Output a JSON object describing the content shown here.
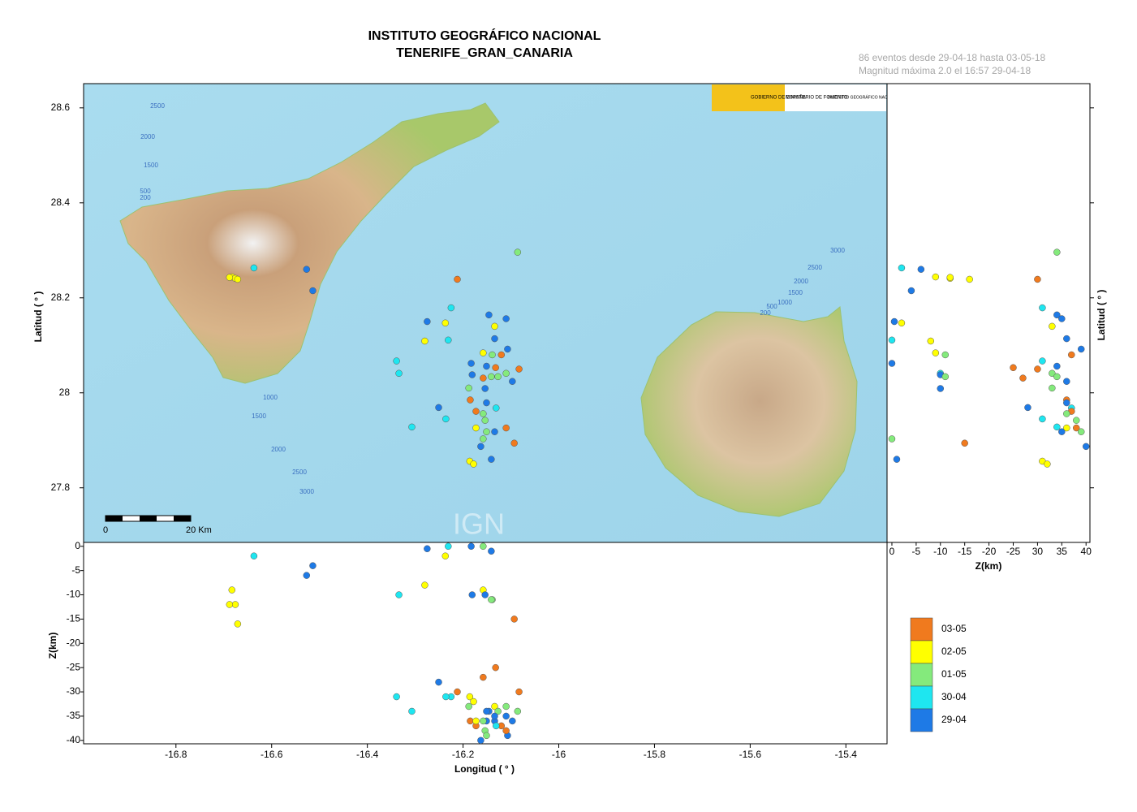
{
  "header": {
    "title": "INSTITUTO GEOGRÁFICO NACIONAL",
    "subtitle": "TENERIFE_GRAN_CANARIA",
    "info": [
      "86 eventos desde 29-04-18 hasta 03-05-18",
      "Magnitud máxima 2.0 el 16:57 29-04-18"
    ]
  },
  "map": {
    "xlabel": "Longitud ( ° )",
    "ylabel": "Latitud ( ° )",
    "xlim": [
      -16.993,
      -15.314
    ],
    "ylim": [
      27.685,
      28.651
    ],
    "xticks": [
      -16.8,
      -16.6,
      -16.4,
      -16.2,
      -16.0,
      -15.8,
      -15.6,
      -15.4
    ],
    "yticks": [
      28.6,
      28.4,
      28.2,
      28,
      27.8
    ],
    "scale_bar": {
      "start": "0",
      "end": "20 Km"
    },
    "watermark": "IGN",
    "logos": [
      "GOBIERNO DE ESPAÑA",
      "MINISTERIO DE FOMENTO",
      "INSTITUTO GEOGRÁFICO NACIONAL"
    ],
    "bathymetry_labels": [
      "2500",
      "2000",
      "1500",
      "500",
      "200",
      "1000",
      "1500",
      "2000",
      "2500",
      "3000",
      "3000",
      "2500",
      "2000",
      "1500",
      "1000",
      "500",
      "200"
    ]
  },
  "depth_section": {
    "ylabel": "Z(km)",
    "ylim": [
      -0.8,
      40.7
    ],
    "yticks": [
      0,
      {
        "value": 5,
        "label": "-5"
      },
      {
        "value": 10,
        "label": "-10"
      },
      {
        "value": 15,
        "label": "-15"
      },
      {
        "value": 20,
        "label": "-20"
      },
      {
        "value": 25,
        "label": "-25"
      },
      {
        "value": 30,
        "label": "-30"
      },
      {
        "value": 35,
        "label": "-35"
      },
      {
        "value": 40,
        "label": "-40"
      }
    ]
  },
  "depth_profile": {
    "xlabel": "Z(km)",
    "ylabel": "Latitud ( ° )",
    "xlim": [
      -1,
      40.8
    ],
    "xticks": [
      0,
      {
        "value": 5,
        "label": "-5"
      },
      {
        "value": 10,
        "label": "-10"
      },
      {
        "value": 15,
        "label": "-15"
      },
      {
        "value": 20,
        "label": "-20"
      },
      {
        "value": 25,
        "label": "-25"
      },
      30,
      35,
      40
    ]
  },
  "legend": [
    {
      "label": "03-05",
      "color": "#f07a1e"
    },
    {
      "label": "02-05",
      "color": "#ffff00"
    },
    {
      "label": "01-05",
      "color": "#84ea7c"
    },
    {
      "label": "30-04",
      "color": "#1ee6f0"
    },
    {
      "label": "29-04",
      "color": "#1e7ae6"
    }
  ],
  "events": [
    {
      "lon": -16.637,
      "lat": 28.263,
      "depth": 2,
      "date": "30-04"
    },
    {
      "lon": -16.527,
      "lat": 28.26,
      "depth": 6,
      "date": "29-04"
    },
    {
      "lon": -16.514,
      "lat": 28.215,
      "depth": 4,
      "date": "29-04"
    },
    {
      "lon": -16.683,
      "lat": 28.244,
      "depth": 9,
      "date": "02-05"
    },
    {
      "lon": -16.676,
      "lat": 28.241,
      "depth": 12,
      "date": "02-05"
    },
    {
      "lon": -16.688,
      "lat": 28.243,
      "depth": 12,
      "date": "02-05"
    },
    {
      "lon": -16.671,
      "lat": 28.239,
      "depth": 16,
      "date": "02-05"
    },
    {
      "lon": -16.086,
      "lat": 28.296,
      "depth": 34,
      "date": "01-05"
    },
    {
      "lon": -16.212,
      "lat": 28.239,
      "depth": 30,
      "date": "03-05"
    },
    {
      "lon": -16.225,
      "lat": 28.179,
      "depth": 31,
      "date": "30-04"
    },
    {
      "lon": -16.275,
      "lat": 28.15,
      "depth": 0.5,
      "date": "29-04"
    },
    {
      "lon": -16.237,
      "lat": 28.147,
      "depth": 2,
      "date": "02-05"
    },
    {
      "lon": -16.146,
      "lat": 28.164,
      "depth": 34,
      "date": "29-04"
    },
    {
      "lon": -16.11,
      "lat": 28.156,
      "depth": 35,
      "date": "29-04"
    },
    {
      "lon": -16.134,
      "lat": 28.14,
      "depth": 33,
      "date": "02-05"
    },
    {
      "lon": -16.231,
      "lat": 28.111,
      "depth": 0,
      "date": "30-04"
    },
    {
      "lon": -16.28,
      "lat": 28.109,
      "depth": 8,
      "date": "02-05"
    },
    {
      "lon": -16.134,
      "lat": 28.114,
      "depth": 36,
      "date": "29-04"
    },
    {
      "lon": -16.339,
      "lat": 28.067,
      "depth": 31,
      "date": "30-04"
    },
    {
      "lon": -16.334,
      "lat": 28.041,
      "depth": 10,
      "date": "30-04"
    },
    {
      "lon": -16.158,
      "lat": 28.084,
      "depth": 9,
      "date": "02-05"
    },
    {
      "lon": -16.139,
      "lat": 28.08,
      "depth": 11,
      "date": "01-05"
    },
    {
      "lon": -16.12,
      "lat": 28.08,
      "depth": 37,
      "date": "03-05"
    },
    {
      "lon": -16.107,
      "lat": 28.092,
      "depth": 39,
      "date": "29-04"
    },
    {
      "lon": -16.183,
      "lat": 28.062,
      "depth": 0,
      "date": "29-04"
    },
    {
      "lon": -16.151,
      "lat": 28.056,
      "depth": 34,
      "date": "29-04"
    },
    {
      "lon": -16.132,
      "lat": 28.053,
      "depth": 25,
      "date": "03-05"
    },
    {
      "lon": -16.083,
      "lat": 28.05,
      "depth": 30,
      "date": "03-05"
    },
    {
      "lon": -16.11,
      "lat": 28.041,
      "depth": 33,
      "date": "01-05"
    },
    {
      "lon": -16.181,
      "lat": 28.038,
      "depth": 10,
      "date": "29-04"
    },
    {
      "lon": -16.158,
      "lat": 28.031,
      "depth": 27,
      "date": "03-05"
    },
    {
      "lon": -16.141,
      "lat": 28.034,
      "depth": 11,
      "date": "01-05"
    },
    {
      "lon": -16.127,
      "lat": 28.034,
      "depth": 34,
      "date": "01-05"
    },
    {
      "lon": -16.097,
      "lat": 28.024,
      "depth": 36,
      "date": "29-04"
    },
    {
      "lon": -16.188,
      "lat": 28.01,
      "depth": 33,
      "date": "01-05"
    },
    {
      "lon": -16.154,
      "lat": 28.009,
      "depth": 10,
      "date": "29-04"
    },
    {
      "lon": -16.185,
      "lat": 27.985,
      "depth": 36,
      "date": "03-05"
    },
    {
      "lon": -16.151,
      "lat": 27.979,
      "depth": 36,
      "date": "29-04"
    },
    {
      "lon": -16.131,
      "lat": 27.968,
      "depth": 37,
      "date": "30-04"
    },
    {
      "lon": -16.251,
      "lat": 27.969,
      "depth": 28,
      "date": "29-04"
    },
    {
      "lon": -16.173,
      "lat": 27.961,
      "depth": 37,
      "date": "03-05"
    },
    {
      "lon": -16.158,
      "lat": 27.956,
      "depth": 36,
      "date": "01-05"
    },
    {
      "lon": -16.154,
      "lat": 27.942,
      "depth": 38,
      "date": "01-05"
    },
    {
      "lon": -16.236,
      "lat": 27.945,
      "depth": 31,
      "date": "30-04"
    },
    {
      "lon": -16.307,
      "lat": 27.928,
      "depth": 34,
      "date": "30-04"
    },
    {
      "lon": -16.173,
      "lat": 27.926,
      "depth": 36,
      "date": "02-05"
    },
    {
      "lon": -16.134,
      "lat": 27.918,
      "depth": 35,
      "date": "29-04"
    },
    {
      "lon": -16.11,
      "lat": 27.926,
      "depth": 38,
      "date": "03-05"
    },
    {
      "lon": -16.093,
      "lat": 27.894,
      "depth": 15,
      "date": "03-05"
    },
    {
      "lon": -16.151,
      "lat": 27.918,
      "depth": 39,
      "date": "01-05"
    },
    {
      "lon": -16.163,
      "lat": 27.887,
      "depth": 40,
      "date": "29-04"
    },
    {
      "lon": -16.186,
      "lat": 27.856,
      "depth": 31,
      "date": "02-05"
    },
    {
      "lon": -16.178,
      "lat": 27.85,
      "depth": 32,
      "date": "02-05"
    },
    {
      "lon": -16.141,
      "lat": 27.86,
      "depth": 1,
      "date": "29-04"
    },
    {
      "lon": -16.158,
      "lat": 27.903,
      "depth": 0,
      "date": "01-05"
    }
  ]
}
